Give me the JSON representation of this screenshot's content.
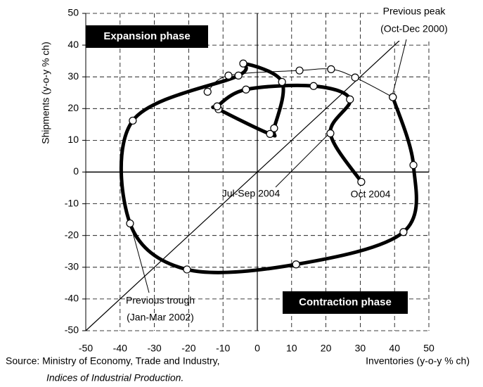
{
  "chart_data": {
    "type": "scatter",
    "x_label": "Inventories (y-o-y % ch)",
    "y_label": "Shipments (y-o-y % ch)",
    "xlim": [
      -50,
      50
    ],
    "ylim": [
      -50,
      50
    ],
    "xticks": [
      -50,
      -40,
      -30,
      -20,
      -10,
      0,
      10,
      20,
      30,
      40,
      50
    ],
    "yticks": [
      -50,
      -40,
      -30,
      -20,
      -10,
      0,
      10,
      20,
      30,
      40,
      50
    ],
    "grid": true,
    "diagonal": true,
    "series": [
      {
        "color": "#000000",
        "line_width": 1,
        "x": [
          -14.5,
          -8.4,
          12.3,
          21.5,
          28.5,
          39.5
        ],
        "values": [
          25.3,
          30.4,
          32,
          32.4,
          29.8,
          23.6
        ]
      },
      {
        "color": "#000000",
        "line_width": 5,
        "x": [
          39.5,
          45.5,
          42.6,
          11.3,
          -20.5,
          -37.1,
          -36.3,
          -5.5,
          -4.1,
          7.2,
          4.9,
          3.7,
          -11.3,
          -11.7,
          -3.3,
          16.4,
          27,
          21.3,
          30.3
        ],
        "values": [
          23.6,
          2.2,
          -18.9,
          -29.1,
          -30.7,
          -16.2,
          16.2,
          30.4,
          34.2,
          28.4,
          13.8,
          12,
          19.8,
          20.7,
          26,
          27.1,
          22.9,
          12.2,
          -3.1
        ]
      }
    ],
    "annotations": {
      "expansion": "Expansion phase",
      "contraction": "Contraction phase",
      "peak": [
        "Previous peak",
        "(Oct-Dec 2000)"
      ],
      "trough": [
        "Previous trough",
        "(Jan-Mar 2002)"
      ],
      "jul_sep": "Jul-Sep 2004",
      "oct": "Oct 2004"
    },
    "source": [
      "Source: Ministry of Economy, Trade and Industry,",
      "Indices of Industrial Production."
    ]
  }
}
